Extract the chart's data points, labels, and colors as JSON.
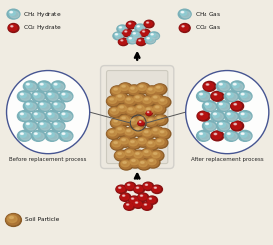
{
  "bg_color": "#f0ece2",
  "ch4_hydrate_base": "#8ecdd4",
  "ch4_hydrate_shadow": "#6aaab0",
  "co2_hydrate_color": "#bb1111",
  "co2_hydrate_dark": "#881111",
  "soil_light": "#c8954a",
  "soil_mid": "#b07838",
  "soil_dark": "#8a5c28",
  "container_fill": "#ddd8cc",
  "container_edge": "#999988",
  "circle_edge": "#334488",
  "before_label": "Before replacement process",
  "after_label": "After replacement process",
  "soil_label": "Soil Particle",
  "ch4_hydrate_label": "CH₄ Hydrate",
  "co2_hydrate_label": "CO₂ Hydrate",
  "ch4_gas_label": "CH₄ Gas",
  "co2_gas_label": "CO₂ Gas"
}
